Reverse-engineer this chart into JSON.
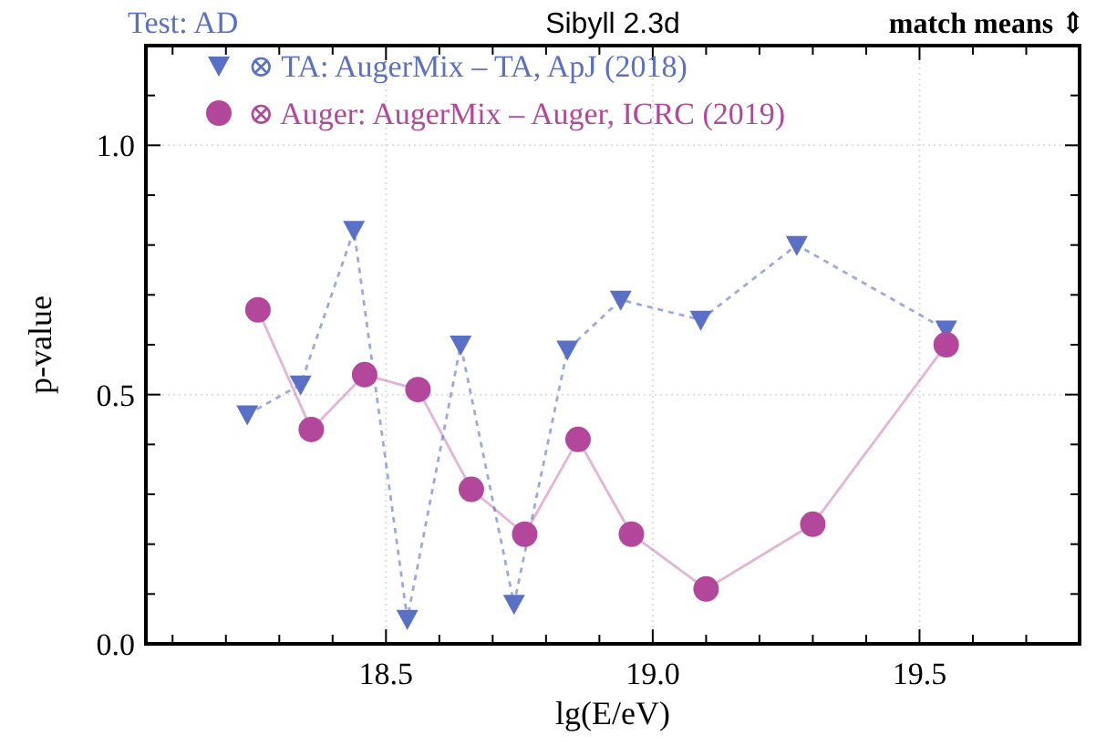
{
  "chart_data": {
    "type": "line",
    "title": "Sibyll 2.3d",
    "annotations": [
      "Test: AD",
      "match means ⇕"
    ],
    "xlabel": "lg(E/eV)",
    "ylabel": "p-value",
    "xlim": [
      18.05,
      19.8
    ],
    "ylim": [
      0,
      1.2
    ],
    "xticks": [
      {
        "value": 18.1,
        "label": null
      },
      {
        "value": 18.2,
        "label": null
      },
      {
        "value": 18.3,
        "label": null
      },
      {
        "value": 18.4,
        "label": null
      },
      {
        "value": 18.5,
        "label": "18.5"
      },
      {
        "value": 18.6,
        "label": null
      },
      {
        "value": 18.7,
        "label": null
      },
      {
        "value": 18.8,
        "label": null
      },
      {
        "value": 18.9,
        "label": null
      },
      {
        "value": 19,
        "label": "19.0"
      },
      {
        "value": 19.1,
        "label": null
      },
      {
        "value": 19.2,
        "label": null
      },
      {
        "value": 19.3,
        "label": null
      },
      {
        "value": 19.4,
        "label": null
      },
      {
        "value": 19.5,
        "label": "19.5"
      },
      {
        "value": 19.6,
        "label": null
      },
      {
        "value": 19.7,
        "label": null
      }
    ],
    "yticks": [
      {
        "value": 0,
        "label": "0.0"
      },
      {
        "value": 0.1,
        "label": null
      },
      {
        "value": 0.2,
        "label": null
      },
      {
        "value": 0.3,
        "label": null
      },
      {
        "value": 0.4,
        "label": null
      },
      {
        "value": 0.5,
        "label": "0.5"
      },
      {
        "value": 0.6,
        "label": null
      },
      {
        "value": 0.7,
        "label": null
      },
      {
        "value": 0.8,
        "label": null
      },
      {
        "value": 0.9,
        "label": null
      },
      {
        "value": 1,
        "label": "1.0"
      },
      {
        "value": 1.1,
        "label": null
      }
    ],
    "grid": true,
    "legend": "top left",
    "series": [
      {
        "name": "⊗ TA: AugerMix – TA, ApJ (2018)",
        "color": "#5a6fc6",
        "marker": "triangle",
        "line_style": "dashed",
        "x": [
          18.24,
          18.34,
          18.44,
          18.54,
          18.64,
          18.74,
          18.84,
          18.94,
          19.09,
          19.27,
          19.55
        ],
        "values": [
          0.46,
          0.52,
          0.83,
          0.05,
          0.6,
          0.08,
          0.59,
          0.69,
          0.65,
          0.8,
          0.63
        ]
      },
      {
        "name": "⊗ Auger: AugerMix – Auger, ICRC (2019)",
        "color": "#b2479c",
        "marker": "circle",
        "line_style": "solid",
        "x": [
          18.26,
          18.36,
          18.46,
          18.56,
          18.66,
          18.76,
          18.86,
          18.96,
          19.1,
          19.3,
          19.55
        ],
        "values": [
          0.67,
          0.43,
          0.54,
          0.51,
          0.31,
          0.22,
          0.41,
          0.22,
          0.11,
          0.24,
          0.6
        ]
      }
    ]
  }
}
